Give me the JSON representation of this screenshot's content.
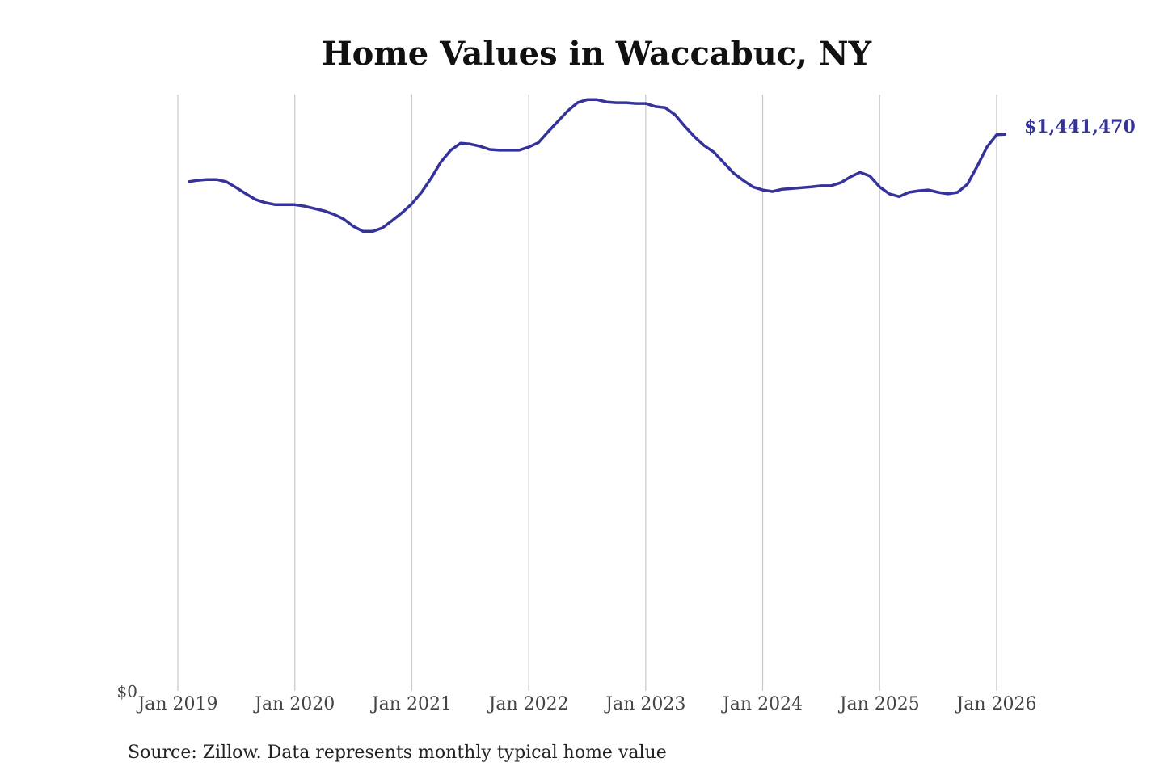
{
  "chart_data": {
    "type": "line",
    "title": "Home Values in Waccabuc, NY",
    "source": "Source: Zillow. Data represents monthly typical home value",
    "color": "#35339a",
    "grid": true,
    "x": [
      "2019-02",
      "2019-03",
      "2019-04",
      "2019-05",
      "2019-06",
      "2019-07",
      "2019-08",
      "2019-09",
      "2019-10",
      "2019-11",
      "2019-12",
      "2020-01",
      "2020-02",
      "2020-03",
      "2020-04",
      "2020-05",
      "2020-06",
      "2020-07",
      "2020-08",
      "2020-09",
      "2020-10",
      "2020-11",
      "2020-12",
      "2021-01",
      "2021-02",
      "2021-03",
      "2021-04",
      "2021-05",
      "2021-06",
      "2021-07",
      "2021-08",
      "2021-09",
      "2021-10",
      "2021-11",
      "2021-12",
      "2022-01",
      "2022-02",
      "2022-03",
      "2022-04",
      "2022-05",
      "2022-06",
      "2022-07",
      "2022-08",
      "2022-09",
      "2022-10",
      "2022-11",
      "2022-12",
      "2023-01",
      "2023-02",
      "2023-03",
      "2023-04",
      "2023-05",
      "2023-06",
      "2023-07",
      "2023-08",
      "2023-09",
      "2023-10",
      "2023-11",
      "2023-12",
      "2024-01",
      "2024-02",
      "2024-03",
      "2024-04",
      "2024-05",
      "2024-06",
      "2024-07",
      "2024-08",
      "2024-09",
      "2024-10",
      "2024-11",
      "2024-12",
      "2025-01",
      "2025-02",
      "2025-03",
      "2025-04",
      "2025-05",
      "2025-06",
      "2025-07",
      "2025-08",
      "2025-09",
      "2025-10",
      "2025-11",
      "2025-12",
      "2026-01",
      "2026-02"
    ],
    "values": [
      1318000,
      1322000,
      1324000,
      1324000,
      1318000,
      1303000,
      1287000,
      1272000,
      1264000,
      1259000,
      1259000,
      1259000,
      1255000,
      1249000,
      1243000,
      1234000,
      1222000,
      1203000,
      1190000,
      1190000,
      1199000,
      1218000,
      1238000,
      1261000,
      1291000,
      1328000,
      1370000,
      1400000,
      1418000,
      1416000,
      1410000,
      1402000,
      1400000,
      1400000,
      1400000,
      1408000,
      1420000,
      1448000,
      1475000,
      1502000,
      1523000,
      1531000,
      1531000,
      1525000,
      1523000,
      1523000,
      1521000,
      1521000,
      1513000,
      1510000,
      1492000,
      1462000,
      1435000,
      1412000,
      1395000,
      1368000,
      1341000,
      1322000,
      1305000,
      1297000,
      1293000,
      1299000,
      1301000,
      1303000,
      1305000,
      1308000,
      1308000,
      1316000,
      1331000,
      1343000,
      1333000,
      1305000,
      1287000,
      1280000,
      1291000,
      1295000,
      1297000,
      1291000,
      1287000,
      1291000,
      1312000,
      1358000,
      1408000,
      1440000,
      1441470
    ],
    "value_labels": [
      null,
      null,
      null,
      null,
      null,
      null,
      null,
      null,
      null,
      null,
      null,
      null,
      null,
      null,
      null,
      null,
      null,
      null,
      null,
      null,
      null,
      null,
      null,
      null,
      null,
      null,
      null,
      null,
      null,
      null,
      null,
      null,
      null,
      null,
      null,
      null,
      null,
      null,
      null,
      null,
      null,
      null,
      null,
      null,
      null,
      null,
      null,
      null,
      null,
      null,
      null,
      null,
      null,
      null,
      null,
      null,
      null,
      null,
      null,
      null,
      null,
      null,
      null,
      null,
      null,
      null,
      null,
      null,
      null,
      null,
      null,
      null,
      null,
      null,
      null,
      null,
      null,
      null,
      null,
      null,
      null,
      null,
      null,
      null,
      "$1,441,470"
    ],
    "xlim": [
      "2019-01",
      "2026-02"
    ],
    "xticks": [
      {
        "value": "2019-01",
        "label": "Jan 2019"
      },
      {
        "value": "2020-01",
        "label": "Jan 2020"
      },
      {
        "value": "2021-01",
        "label": "Jan 2021"
      },
      {
        "value": "2022-01",
        "label": "Jan 2022"
      },
      {
        "value": "2023-01",
        "label": "Jan 2023"
      },
      {
        "value": "2024-01",
        "label": "Jan 2024"
      },
      {
        "value": "2025-01",
        "label": "Jan 2025"
      },
      {
        "value": "2026-01",
        "label": "Jan 2026"
      }
    ],
    "ylim": [
      0,
      1540000
    ],
    "yticks": [
      {
        "value": 0,
        "label": "$0"
      }
    ]
  }
}
